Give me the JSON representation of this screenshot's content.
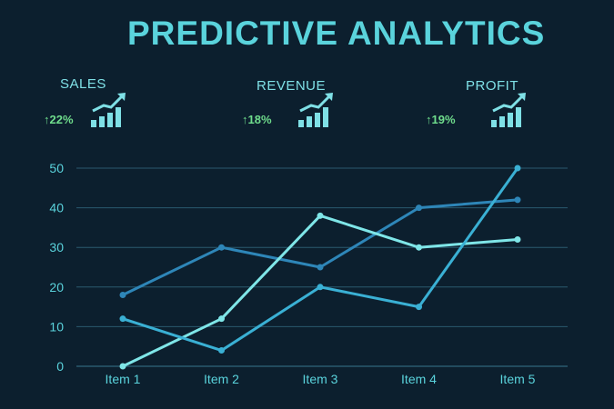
{
  "header": {
    "title": "PREDICTIVE ANALYTICS"
  },
  "kpis": [
    {
      "label": "SALES",
      "change": "22%",
      "trend": "up",
      "icon": "bar-growth-icon"
    },
    {
      "label": "REVENUE",
      "change": "18%",
      "trend": "up",
      "icon": "bar-growth-icon"
    },
    {
      "label": "PROFIT",
      "change": "19%",
      "trend": "up",
      "icon": "bar-growth-icon"
    }
  ],
  "chart_data": {
    "type": "line",
    "categories": [
      "Item 1",
      "Item 2",
      "Item 3",
      "Item 4",
      "Item 5"
    ],
    "series": [
      {
        "values": [
          18,
          30,
          25,
          40,
          42
        ],
        "color": "#2e86b8"
      },
      {
        "values": [
          0,
          12,
          38,
          30,
          32
        ],
        "color": "#7fe6e8"
      },
      {
        "values": [
          12,
          4,
          20,
          15,
          50
        ],
        "color": "#3ab0d4"
      }
    ],
    "ylim": [
      0,
      50
    ],
    "yticks": [
      0,
      10,
      20,
      30,
      40,
      50
    ],
    "grid": true,
    "axis_color": "#2a5a6e"
  }
}
